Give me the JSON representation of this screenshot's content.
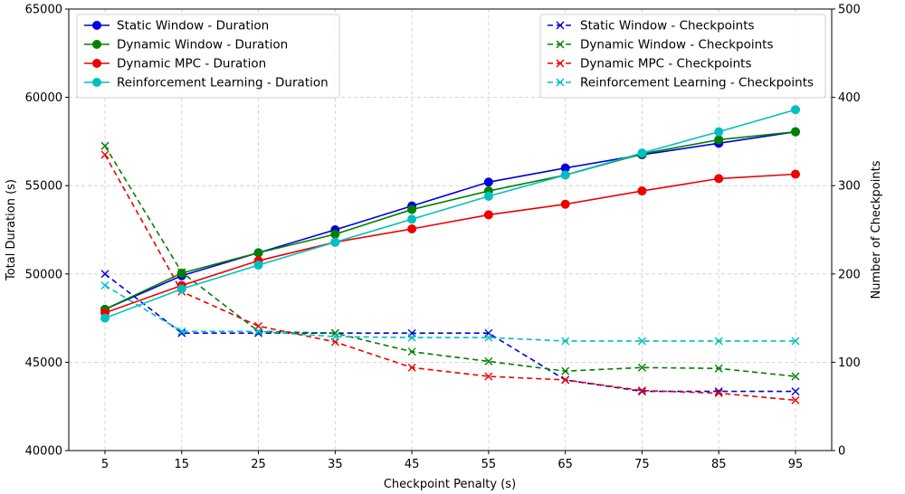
{
  "chart_data": {
    "type": "line",
    "x": [
      5,
      15,
      25,
      35,
      45,
      55,
      65,
      75,
      85,
      95
    ],
    "xlabel": "Checkpoint Penalty (s)",
    "ylabel_left": "Total Duration (s)",
    "ylabel_right": "Number of Checkpoints",
    "ylim_left": [
      40000,
      65000
    ],
    "ylim_right": [
      0,
      500
    ],
    "yticks_left": [
      "40000",
      "45000",
      "50000",
      "55000",
      "60000",
      "65000"
    ],
    "yticks_right": [
      "0",
      "100",
      "200",
      "300",
      "400",
      "500"
    ],
    "xticks": [
      "5",
      "15",
      "25",
      "35",
      "45",
      "55",
      "65",
      "75",
      "85",
      "95"
    ],
    "grid": true,
    "legend_left_position": "upper-left",
    "legend_right_position": "upper-right",
    "series_duration": [
      {
        "name": "Static Window - Duration",
        "color": "#0000dd",
        "values": [
          48000,
          49900,
          51200,
          52500,
          53850,
          55200,
          56000,
          56750,
          57400,
          58050
        ]
      },
      {
        "name": "Dynamic Window - Duration",
        "color": "#008000",
        "values": [
          48000,
          50050,
          51200,
          52250,
          53650,
          54700,
          55600,
          56800,
          57600,
          58050
        ]
      },
      {
        "name": "Dynamic MPC - Duration",
        "color": "#ee0000",
        "values": [
          47800,
          49350,
          50750,
          51800,
          52550,
          53350,
          53950,
          54700,
          55400,
          55650
        ]
      },
      {
        "name": "Reinforcement Learning - Duration",
        "color": "#00bfbf",
        "values": [
          47500,
          49150,
          50500,
          51800,
          53100,
          54400,
          55600,
          56850,
          58050,
          59300
        ]
      }
    ],
    "series_checkpoints": [
      {
        "name": "Static Window - Checkpoints",
        "color": "#0000dd",
        "values": [
          200,
          133,
          133,
          133,
          133,
          133,
          80,
          67,
          67,
          67
        ]
      },
      {
        "name": "Dynamic Window - Checkpoints",
        "color": "#008000",
        "values": [
          345,
          202,
          135,
          133,
          112,
          101,
          90,
          94,
          93,
          84
        ]
      },
      {
        "name": "Dynamic MPC - Checkpoints",
        "color": "#ee0000",
        "values": [
          335,
          180,
          141,
          123,
          94,
          84,
          80,
          68,
          65,
          57
        ]
      },
      {
        "name": "Reinforcement Learning - Checkpoints",
        "color": "#00bfbf",
        "values": [
          187,
          135,
          135,
          129,
          128,
          128,
          124,
          124,
          124,
          124
        ]
      }
    ]
  }
}
